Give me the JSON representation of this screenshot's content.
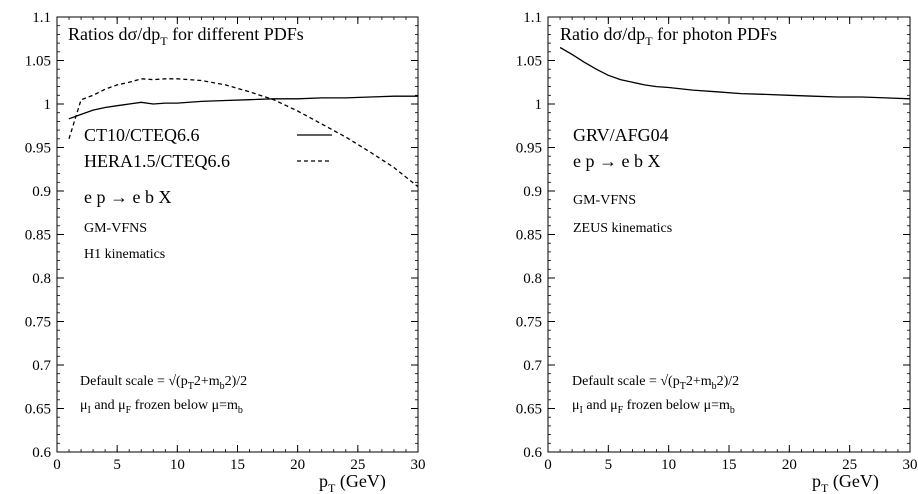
{
  "chart_data": [
    {
      "type": "line",
      "title": "Ratios dσ/dp",
      "title_sub": "T",
      "title_tail": " for different PDFs",
      "xlabel": "p",
      "xlabel_sub": "T",
      "xlabel_tail": " (GeV)",
      "xlim": [
        0,
        30
      ],
      "ylim": [
        0.6,
        1.1
      ],
      "xticks": [
        "0",
        "5",
        "10",
        "15",
        "20",
        "25",
        "30"
      ],
      "yticks": [
        "0.6",
        "0.65",
        "0.7",
        "0.75",
        "0.8",
        "0.85",
        "0.9",
        "0.95",
        "1",
        "1.05",
        "1.1"
      ],
      "legend_position": "upper-left",
      "series": [
        {
          "name": "CT10/CTEQ6.6",
          "style": "solid",
          "x": [
            1,
            2,
            3,
            4,
            5,
            6,
            7,
            8,
            9,
            10,
            12,
            14,
            16,
            18,
            20,
            22,
            24,
            26,
            28,
            30
          ],
          "y": [
            0.983,
            0.988,
            0.993,
            0.996,
            0.998,
            1.0,
            1.002,
            1.0,
            1.001,
            1.001,
            1.003,
            1.004,
            1.005,
            1.006,
            1.006,
            1.007,
            1.007,
            1.008,
            1.009,
            1.009
          ]
        },
        {
          "name": "HERA1.5/CTEQ6.6",
          "style": "dashed",
          "x": [
            1,
            2,
            3,
            4,
            5,
            6,
            7,
            8,
            9,
            10,
            12,
            14,
            16,
            18,
            20,
            22,
            24,
            26,
            28,
            30
          ],
          "y": [
            0.96,
            1.005,
            1.01,
            1.017,
            1.022,
            1.025,
            1.029,
            1.028,
            1.029,
            1.029,
            1.027,
            1.022,
            1.014,
            1.005,
            0.992,
            0.977,
            0.962,
            0.945,
            0.927,
            0.905
          ]
        }
      ],
      "annotations": {
        "process": "e p → e b X",
        "scheme": "GM-VFNS",
        "kinematics": "H1 kinematics",
        "scale_prefix": "Default scale = √(p",
        "scale_sub1": "T",
        "scale_mid": "2+m",
        "scale_sub2": "b",
        "scale_tail": "2)/2",
        "mu_a": "μ",
        "mu_a_sub": "I",
        "mu_b": " and μ",
        "mu_b_sub": "F",
        "mu_c": " frozen below μ=m",
        "mu_c_sub": "b"
      }
    },
    {
      "type": "line",
      "title": "Ratio dσ/dp",
      "title_sub": "T",
      "title_tail": " for photon PDFs",
      "xlabel": "p",
      "xlabel_sub": "T",
      "xlabel_tail": " (GeV)",
      "xlim": [
        0,
        30
      ],
      "ylim": [
        0.6,
        1.1
      ],
      "xticks": [
        "0",
        "5",
        "10",
        "15",
        "20",
        "25",
        "30"
      ],
      "yticks": [
        "0.6",
        "0.65",
        "0.7",
        "0.75",
        "0.8",
        "0.85",
        "0.9",
        "0.95",
        "1",
        "1.05",
        "1.1"
      ],
      "series": [
        {
          "style": "solid",
          "x": [
            1,
            2,
            3,
            4,
            5,
            6,
            7,
            8,
            9,
            10,
            12,
            14,
            16,
            18,
            20,
            22,
            24,
            26,
            28,
            30
          ],
          "y": [
            1.065,
            1.057,
            1.048,
            1.04,
            1.033,
            1.028,
            1.025,
            1.022,
            1.02,
            1.019,
            1.016,
            1.014,
            1.012,
            1.011,
            1.01,
            1.009,
            1.008,
            1.008,
            1.007,
            1.006
          ]
        }
      ],
      "annotations": {
        "label": "GRV/AFG04",
        "process": "e p → e b X",
        "scheme": "GM-VFNS",
        "kinematics": "ZEUS kinematics",
        "scale_prefix": "Default scale = √(p",
        "scale_sub1": "T",
        "scale_mid": "2+m",
        "scale_sub2": "b",
        "scale_tail": "2)/2",
        "mu_a": "μ",
        "mu_a_sub": "I",
        "mu_b": " and μ",
        "mu_b_sub": "F",
        "mu_c": " frozen below μ=m",
        "mu_c_sub": "b"
      }
    }
  ]
}
